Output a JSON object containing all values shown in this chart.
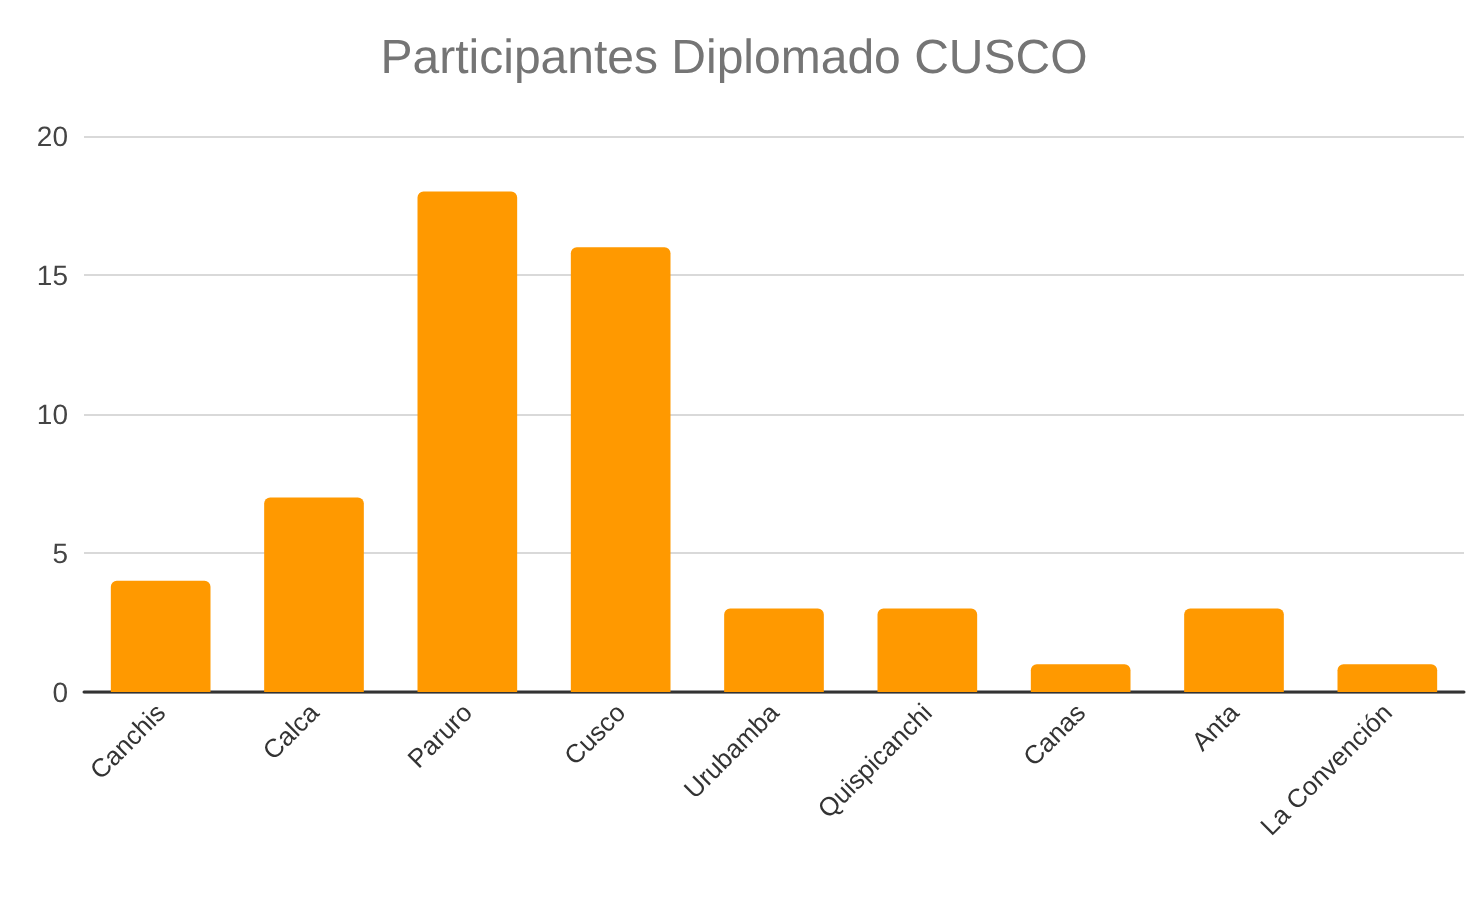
{
  "chart_data": {
    "type": "bar",
    "title": "Participantes Diplomado CUSCO",
    "categories": [
      "Canchis",
      "Calca",
      "Paruro",
      "Cusco",
      "Urubamba",
      "Quispicanchi",
      "Canas",
      "Anta",
      "La Convención"
    ],
    "values": [
      4,
      7,
      18,
      16,
      3,
      3,
      1,
      3,
      1
    ],
    "color": "#ff9900",
    "ylim": [
      0,
      20
    ],
    "yticks": [
      0,
      5,
      10,
      15,
      20
    ],
    "grid": "y"
  }
}
